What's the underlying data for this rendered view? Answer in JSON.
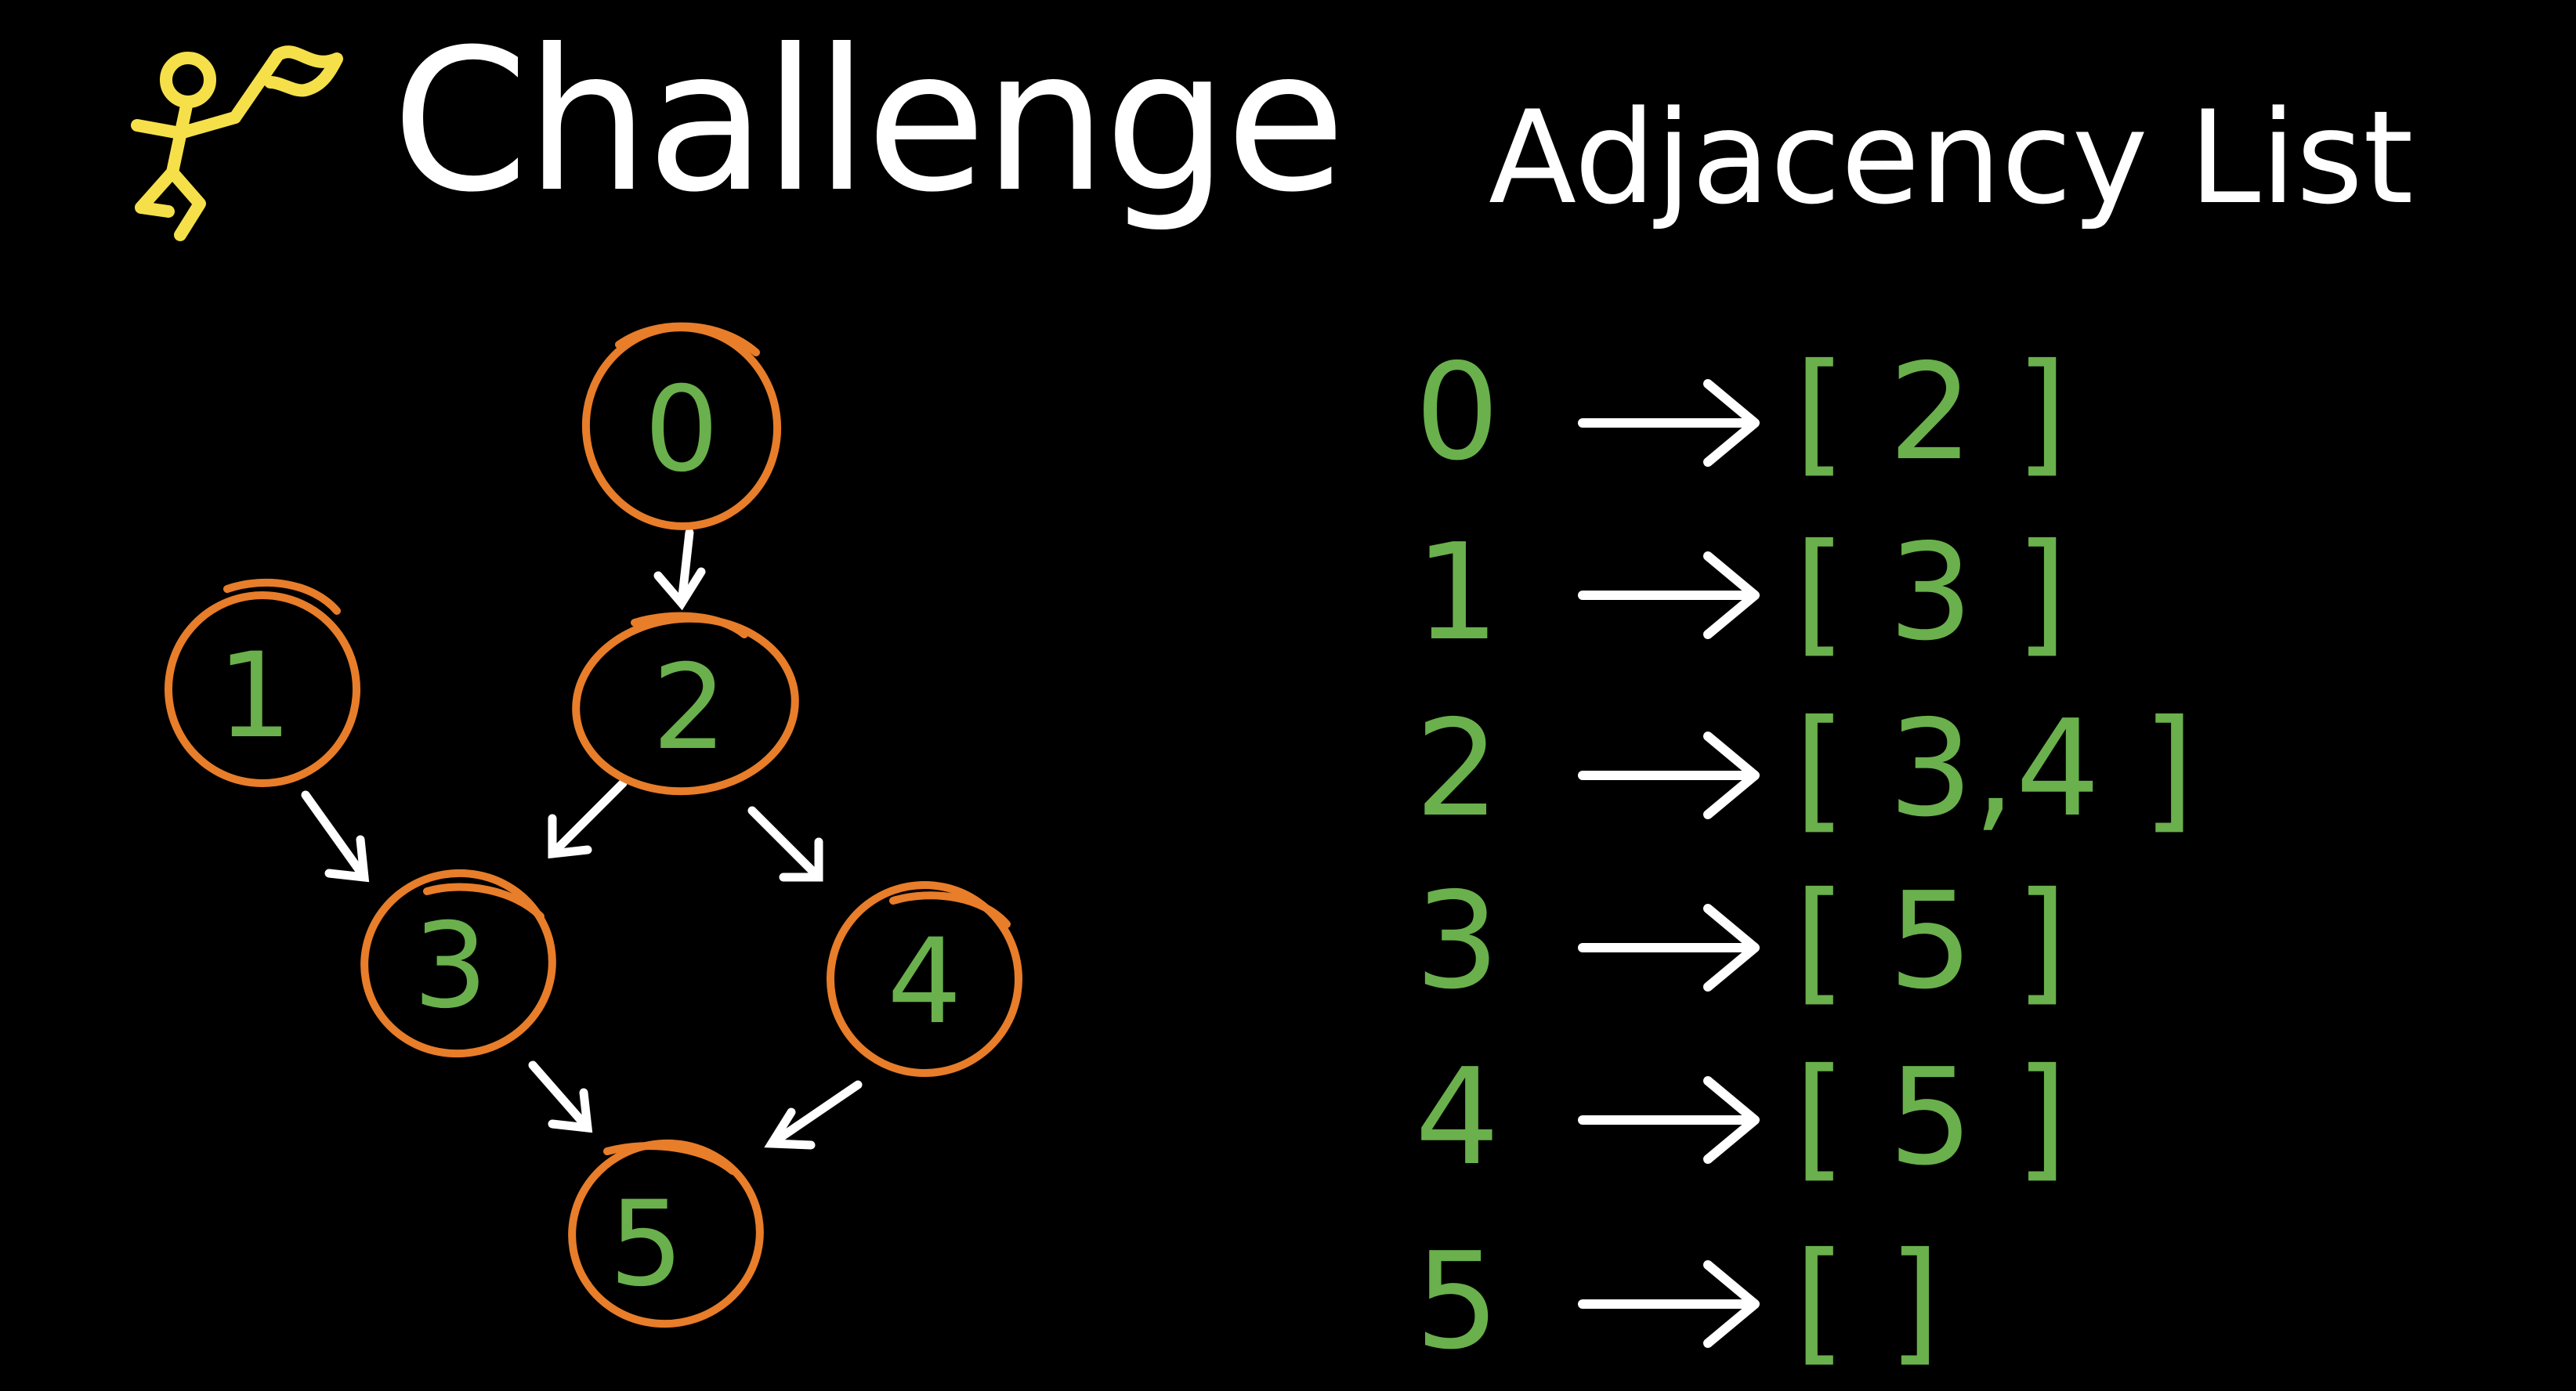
{
  "header": {
    "title": "Challenge",
    "subtitle": "Adjacency List"
  },
  "colors": {
    "background": "#000000",
    "text": "#ffffff",
    "node_stroke": "#e87d2a",
    "node_label": "#6ab04c",
    "edge": "#ffffff",
    "icon": "#f5e04a"
  },
  "icons": {
    "header_icon": "running-figure-with-flag-icon"
  },
  "graph": {
    "nodes": [
      {
        "id": "0",
        "label": "0"
      },
      {
        "id": "1",
        "label": "1"
      },
      {
        "id": "2",
        "label": "2"
      },
      {
        "id": "3",
        "label": "3"
      },
      {
        "id": "4",
        "label": "4"
      },
      {
        "id": "5",
        "label": "5"
      }
    ],
    "edges": [
      {
        "from": "0",
        "to": "2"
      },
      {
        "from": "1",
        "to": "3"
      },
      {
        "from": "2",
        "to": "3"
      },
      {
        "from": "2",
        "to": "4"
      },
      {
        "from": "3",
        "to": "5"
      },
      {
        "from": "4",
        "to": "5"
      }
    ]
  },
  "adjacency_list": [
    {
      "vertex": "0",
      "neighbors": "[ 2 ]"
    },
    {
      "vertex": "1",
      "neighbors": "[ 3 ]"
    },
    {
      "vertex": "2",
      "neighbors": "[ 3,4 ]"
    },
    {
      "vertex": "3",
      "neighbors": "[ 5 ]"
    },
    {
      "vertex": "4",
      "neighbors": "[ 5 ]"
    },
    {
      "vertex": "5",
      "neighbors": "[ ]"
    }
  ]
}
